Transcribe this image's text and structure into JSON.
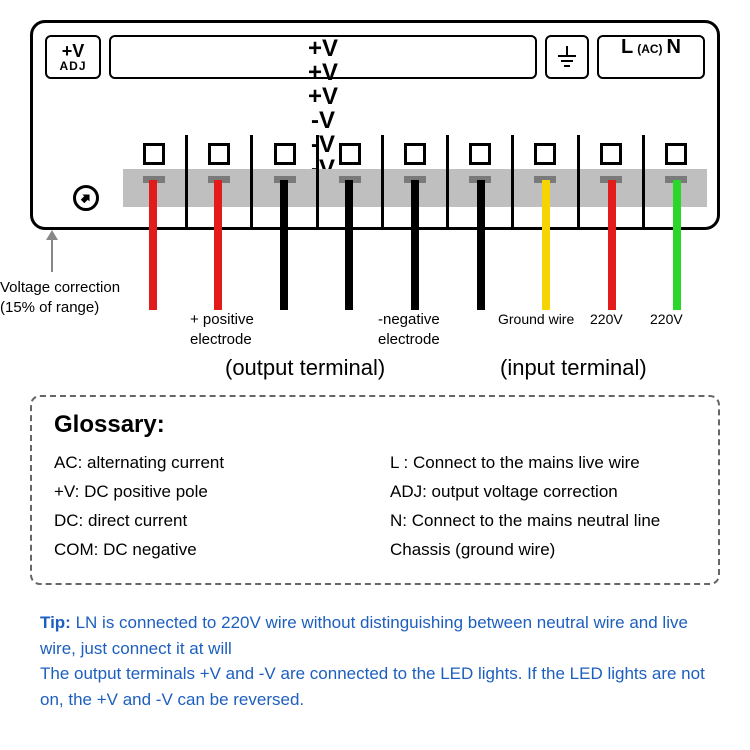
{
  "colors": {
    "wire_red": "#e21b1b",
    "wire_black": "#000000",
    "wire_yellow": "#f5d400",
    "wire_green": "#2bd62b",
    "tip_blue": "#1d5fbf",
    "terminal_gray": "#bfbfbf",
    "arrow_gray": "#888888"
  },
  "labels": {
    "adj_top": "+V",
    "adj_sub": "ADJ",
    "ln_L": "L",
    "ln_ac": "(AC)",
    "ln_N": "N"
  },
  "v_strip": [
    "+V",
    "+V",
    "+V",
    "-V",
    "-V",
    "-V"
  ],
  "terminals": [
    {
      "wire_color": "#e21b1b"
    },
    {
      "wire_color": "#e21b1b"
    },
    {
      "wire_color": "#000000"
    },
    {
      "wire_color": "#000000"
    },
    {
      "wire_color": "#000000"
    },
    {
      "wire_color": "#000000"
    },
    {
      "wire_color": "#f5d400"
    },
    {
      "wire_color": "#e21b1b"
    },
    {
      "wire_color": "#2bd62b"
    }
  ],
  "captions": {
    "voltage_corr_1": "Voltage correction",
    "voltage_corr_2": "(15% of range)",
    "pos_elec_1": "+ positive",
    "pos_elec_2": "electrode",
    "neg_elec_1": "-negative",
    "neg_elec_2": "electrode",
    "ground": "Ground wire",
    "v220a": "220V",
    "v220b": "220V",
    "output": "(output terminal)",
    "input": "(input terminal)"
  },
  "glossary": {
    "title": "Glossary:",
    "left": [
      "AC: alternating current",
      "+V: DC positive pole",
      "DC: direct current",
      "COM: DC negative"
    ],
    "right": [
      "L : Connect to the mains live wire",
      "ADJ: output voltage correction",
      "N: Connect to the mains neutral line",
      "Chassis (ground wire)"
    ]
  },
  "tip": {
    "label": "Tip:",
    "line1": " LN is connected to 220V wire without distinguishing between neutral wire and live wire, just connect it at will",
    "line2": "The output terminals +V and -V are connected to the LED lights. If the LED lights are not on, the +V and -V can be reversed."
  }
}
